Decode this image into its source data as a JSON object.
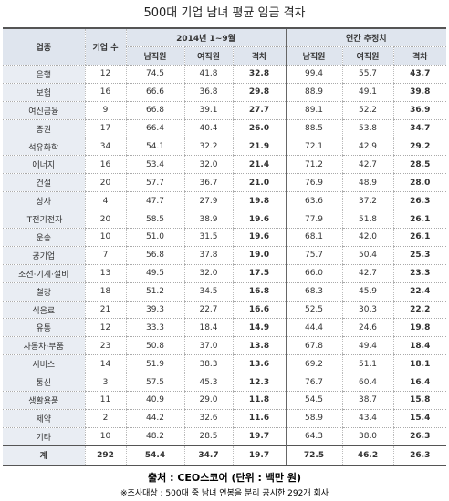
{
  "title": "500대 기업 남녀 평균 임금 격차",
  "table": {
    "header": {
      "industry": "업종",
      "count": "기업 수",
      "period1": "2014년 1~9월",
      "period2": "연간 추정치",
      "sub": [
        "남직원",
        "여직원",
        "격차",
        "남직원",
        "여직원",
        "격차"
      ]
    },
    "rows": [
      [
        "은행",
        "12",
        "74.5",
        "41.8",
        "32.8",
        "99.4",
        "55.7",
        "43.7"
      ],
      [
        "보험",
        "16",
        "66.6",
        "36.8",
        "29.8",
        "88.9",
        "49.1",
        "39.8"
      ],
      [
        "여신금융",
        "9",
        "66.8",
        "39.1",
        "27.7",
        "89.1",
        "52.2",
        "36.9"
      ],
      [
        "증권",
        "17",
        "66.4",
        "40.4",
        "26.0",
        "88.5",
        "53.8",
        "34.7"
      ],
      [
        "석유화학",
        "34",
        "54.1",
        "32.2",
        "21.9",
        "72.1",
        "42.9",
        "29.2"
      ],
      [
        "에너지",
        "16",
        "53.4",
        "32.0",
        "21.4",
        "71.2",
        "42.7",
        "28.5"
      ],
      [
        "건설",
        "20",
        "57.7",
        "36.7",
        "21.0",
        "76.9",
        "48.9",
        "28.0"
      ],
      [
        "상사",
        "4",
        "47.7",
        "27.9",
        "19.8",
        "63.6",
        "37.2",
        "26.3"
      ],
      [
        "IT전기전자",
        "20",
        "58.5",
        "38.9",
        "19.6",
        "77.9",
        "51.8",
        "26.1"
      ],
      [
        "운송",
        "10",
        "51.0",
        "31.5",
        "19.6",
        "68.1",
        "42.0",
        "26.1"
      ],
      [
        "공기업",
        "7",
        "56.8",
        "37.8",
        "19.0",
        "75.7",
        "50.4",
        "25.3"
      ],
      [
        "조선·기계·설비",
        "13",
        "49.5",
        "32.0",
        "17.5",
        "66.0",
        "42.7",
        "23.3"
      ],
      [
        "철강",
        "18",
        "51.2",
        "34.5",
        "16.8",
        "68.3",
        "45.9",
        "22.4"
      ],
      [
        "식음료",
        "21",
        "39.3",
        "22.7",
        "16.6",
        "52.5",
        "30.3",
        "22.2"
      ],
      [
        "유통",
        "12",
        "33.3",
        "18.4",
        "14.9",
        "44.4",
        "24.6",
        "19.8"
      ],
      [
        "자동차·부품",
        "23",
        "50.8",
        "37.0",
        "13.8",
        "67.8",
        "49.4",
        "18.4"
      ],
      [
        "서비스",
        "14",
        "51.9",
        "38.3",
        "13.6",
        "69.2",
        "51.1",
        "18.1"
      ],
      [
        "통신",
        "3",
        "57.5",
        "45.3",
        "12.3",
        "76.7",
        "60.4",
        "16.4"
      ],
      [
        "생활용품",
        "11",
        "40.9",
        "29.0",
        "11.8",
        "54.5",
        "38.7",
        "15.8"
      ],
      [
        "제약",
        "2",
        "44.2",
        "32.6",
        "11.6",
        "58.9",
        "43.4",
        "15.4"
      ],
      [
        "기타",
        "10",
        "48.2",
        "28.5",
        "19.7",
        "64.3",
        "38.0",
        "26.3"
      ]
    ],
    "total": [
      "계",
      "292",
      "54.4",
      "34.7",
      "19.7",
      "72.5",
      "46.2",
      "26.3"
    ]
  },
  "footer": {
    "source": "출처 : CEO스코어 (단위 : 백만 원)",
    "note": "※조사대상 : 500대 중 남녀 연봉을 분리 공시한 292개 회사"
  }
}
